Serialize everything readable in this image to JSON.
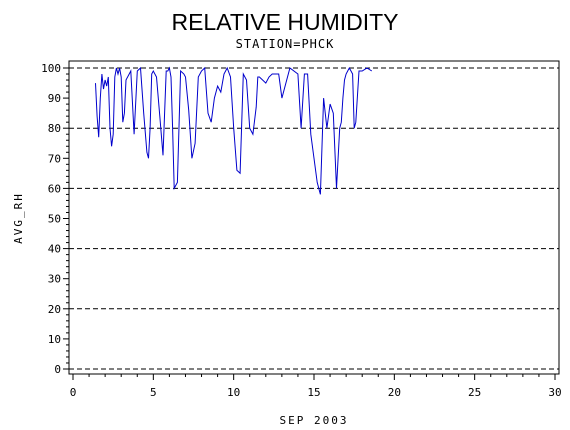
{
  "chart_data": {
    "type": "line",
    "title": "RELATIVE HUMIDITY",
    "subtitle": "STATION=PHCK",
    "xlabel": "SEP 2003",
    "ylabel": "AVG_RH",
    "xlim": [
      0,
      30
    ],
    "ylim": [
      0,
      100
    ],
    "x_ticks": [
      0,
      5,
      10,
      15,
      20,
      25,
      30
    ],
    "y_ticks": [
      0,
      10,
      20,
      30,
      40,
      50,
      60,
      70,
      80,
      90,
      100
    ],
    "grid_y": [
      0,
      20,
      40,
      60,
      80,
      100
    ],
    "grid": true,
    "legend": "none",
    "series": [
      {
        "color": "#0000cc",
        "x": [
          1.4,
          1.5,
          1.6,
          1.7,
          1.8,
          1.9,
          2.0,
          2.1,
          2.2,
          2.3,
          2.4,
          2.5,
          2.6,
          2.7,
          2.8,
          2.9,
          3.0,
          3.1,
          3.2,
          3.3,
          3.4,
          3.5,
          3.6,
          3.8,
          4.0,
          4.2,
          4.4,
          4.6,
          4.7,
          4.8,
          4.9,
          5.0,
          5.2,
          5.4,
          5.6,
          5.8,
          5.9,
          6.0,
          6.1,
          6.2,
          6.3,
          6.5,
          6.7,
          6.9,
          7.0,
          7.2,
          7.4,
          7.6,
          7.8,
          8.0,
          8.2,
          8.4,
          8.6,
          8.8,
          9.0,
          9.2,
          9.4,
          9.6,
          9.8,
          10.0,
          10.2,
          10.4,
          10.6,
          10.8,
          11.0,
          11.2,
          11.4,
          11.5,
          11.6,
          11.8,
          12.0,
          12.2,
          12.4,
          12.6,
          12.8,
          13.0,
          13.5,
          14.0,
          14.2,
          14.4,
          14.6,
          14.8,
          15.0,
          15.2,
          15.4,
          15.6,
          15.8,
          16.0,
          16.2,
          16.4,
          16.6,
          16.7,
          16.8,
          16.9,
          17.0,
          17.1,
          17.2,
          17.3,
          17.4,
          17.5,
          17.6,
          17.8,
          18.0,
          18.3,
          18.6
        ],
        "y": [
          95,
          84,
          77,
          90,
          98,
          93,
          96,
          94,
          97,
          80,
          74,
          78,
          97,
          100,
          98,
          100,
          97,
          82,
          85,
          96,
          97,
          98,
          99,
          78,
          99,
          100,
          85,
          72,
          70,
          80,
          98,
          99,
          97,
          84,
          71,
          99,
          99,
          100,
          97,
          80,
          60,
          62,
          99,
          98,
          97,
          86,
          70,
          75,
          97,
          99,
          100,
          85,
          82,
          90,
          94,
          92,
          98,
          100,
          97,
          80,
          66,
          65,
          98,
          96,
          80,
          78,
          87,
          97,
          97,
          96,
          95,
          97,
          98,
          98,
          98,
          90,
          100,
          98,
          80,
          98,
          98,
          78,
          70,
          62,
          58,
          90,
          80,
          88,
          85,
          60,
          80,
          82,
          90,
          96,
          98,
          99,
          100,
          99,
          98,
          80,
          82,
          99,
          99,
          100,
          99
        ]
      }
    ]
  }
}
